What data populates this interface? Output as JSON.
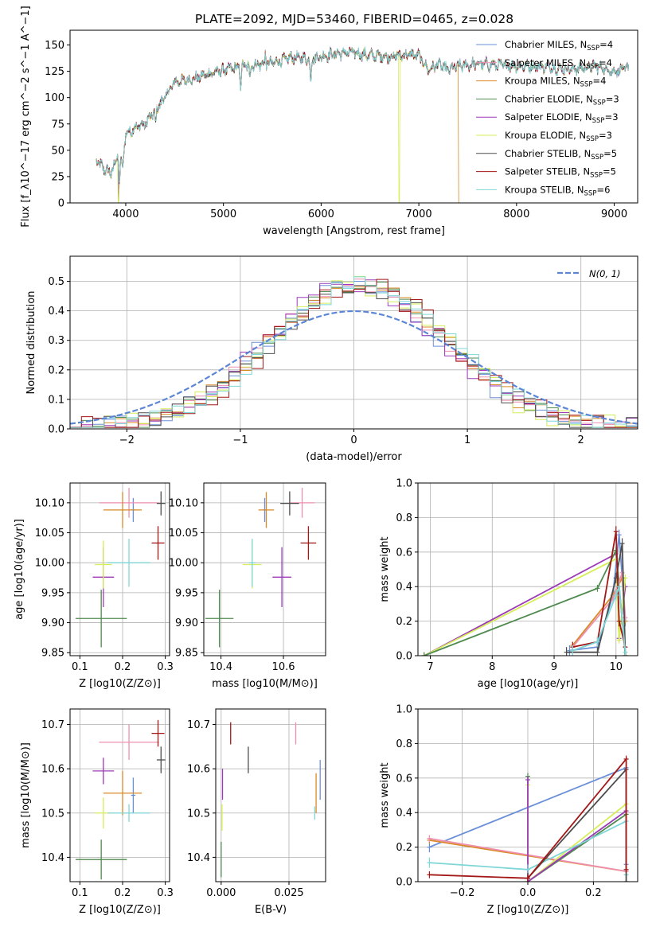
{
  "palette": {
    "chab_miles": "#6a8fd9",
    "salp_miles": "#ef8fb0",
    "krou_miles": "#d98a26",
    "chab_elodie": "#4f8a4f",
    "salp_elodie": "#9c3ab7",
    "krou_elodie": "#d6ee5a",
    "chab_stelib": "#4d4d4d",
    "salp_stelib": "#a31717",
    "krou_stelib": "#7fd6d6",
    "gauss": "#5b86d6"
  },
  "chart_data": [
    {
      "id": "spectrum",
      "type": "line",
      "title": "PLATE=2092, MJD=53460, FIBERID=0465, z=0.028",
      "xlabel": "wavelength [Angstrom, rest frame]",
      "ylabel": "Flux [f_λ10^−17 erg cm^−2 s^−1 A^−1]",
      "xlim": [
        3430,
        9240
      ],
      "ylim": [
        0,
        164
      ],
      "xticks": [
        4000,
        5000,
        6000,
        7000,
        8000,
        9000
      ],
      "yticks": [
        0,
        25,
        50,
        75,
        100,
        125,
        150
      ],
      "grid": false,
      "legend_position": "upper right",
      "legend": [
        {
          "key": "chab_miles",
          "text": "Chabrier MILES, N_SSP=4"
        },
        {
          "key": "salp_miles",
          "text": "Salpeter MILES, N_SSP=4"
        },
        {
          "key": "krou_miles",
          "text": "Kroupa MILES, N_SSP=4"
        },
        {
          "key": "chab_elodie",
          "text": "Chabrier ELODIE, N_SSP=3"
        },
        {
          "key": "salp_elodie",
          "text": "Salpeter ELODIE, N_SSP=3"
        },
        {
          "key": "krou_elodie",
          "text": "Kroupa ELODIE, N_SSP=3"
        },
        {
          "key": "chab_stelib",
          "text": "Chabrier STELIB, N_SSP=5"
        },
        {
          "key": "salp_stelib",
          "text": "Salpeter STELIB, N_SSP=5"
        },
        {
          "key": "krou_stelib",
          "text": "Kroupa STELIB, N_SSP=6"
        }
      ],
      "continuum": {
        "x": [
          3700,
          3780,
          3850,
          3920,
          3950,
          4000,
          4100,
          4200,
          4300,
          4400,
          4500,
          4700,
          4900,
          5100,
          5300,
          5500,
          5700,
          5900,
          6100,
          6300,
          6500,
          6700,
          6900,
          7000,
          7100,
          7200,
          7300,
          7400,
          7600,
          7800,
          8000,
          8200,
          8400,
          8600,
          8800,
          9000,
          9150
        ],
        "y": [
          40,
          32,
          28,
          45,
          38,
          65,
          72,
          75,
          88,
          100,
          115,
          118,
          124,
          128,
          131,
          133,
          138,
          137,
          141,
          143,
          140,
          139,
          141,
          140,
          126,
          132,
          126,
          130,
          132,
          131,
          130,
          130,
          128,
          127,
          130,
          125,
          128
        ]
      },
      "features": {
        "absorption": [
          {
            "x": 3935,
            "depth": 20
          },
          {
            "x": 3970,
            "depth": 18
          },
          {
            "x": 4305,
            "depth": 15
          },
          {
            "x": 5175,
            "depth": 18
          },
          {
            "x": 5270,
            "depth": 10
          },
          {
            "x": 5893,
            "depth": 22
          }
        ],
        "emission": [
          {
            "x": 5430,
            "height": 12
          }
        ],
        "dropouts": [
          {
            "series": "krou_elodie",
            "x": 3925
          },
          {
            "series": "salp_elodie",
            "x": 3928
          },
          {
            "series": "krou_elodie",
            "x": 6800
          },
          {
            "series": "krou_miles",
            "x": 7410
          }
        ]
      }
    },
    {
      "id": "residuals",
      "type": "histogram",
      "xlabel": "(data-model)/error",
      "ylabel": "Normed distribution",
      "xlim": [
        -2.5,
        2.5
      ],
      "ylim": [
        0,
        0.585
      ],
      "xticks": [
        -2,
        -1,
        0,
        1,
        2
      ],
      "yticks": [
        0.0,
        0.1,
        0.2,
        0.3,
        0.4,
        0.5
      ],
      "grid": true,
      "legend_position": "upper right",
      "gaussian_label": "N(0, 1)",
      "bin_width": 0.1,
      "series_offsets": [
        {
          "key": "chab_miles",
          "phase": 0.0,
          "jitter": 0.03
        },
        {
          "key": "salp_miles",
          "phase": 0.02,
          "jitter": 0.02
        },
        {
          "key": "krou_miles",
          "phase": 0.04,
          "jitter": 0.025
        },
        {
          "key": "chab_elodie",
          "phase": 0.06,
          "jitter": 0.03
        },
        {
          "key": "salp_elodie",
          "phase": 0.01,
          "jitter": 0.035
        },
        {
          "key": "krou_elodie",
          "phase": 0.03,
          "jitter": 0.04
        },
        {
          "key": "chab_stelib",
          "phase": 0.05,
          "jitter": 0.035
        },
        {
          "key": "salp_stelib",
          "phase": 0.07,
          "jitter": 0.04
        },
        {
          "key": "krou_stelib",
          "phase": 0.08,
          "jitter": 0.03
        }
      ],
      "peak": 0.49,
      "sigma": 0.78
    },
    {
      "id": "age_vs_Z",
      "type": "errorbar",
      "xlabel": "Z [log10(Z/Z⊙)]",
      "ylabel": "age [log10(age/yr)]",
      "xlim": [
        0.077,
        0.31
      ],
      "ylim": [
        9.845,
        10.133
      ],
      "xticks": [
        0.1,
        0.2,
        0.3
      ],
      "yticks": [
        9.85,
        9.9,
        9.95,
        10.0,
        10.05,
        10.1
      ],
      "grid": true,
      "points": [
        {
          "key": "chab_miles",
          "x": 0.225,
          "xerr": 0.005,
          "y": 10.088,
          "yerr": 0.02
        },
        {
          "key": "salp_miles",
          "x": 0.215,
          "xerr": 0.07,
          "y": 10.1,
          "yerr": 0.025
        },
        {
          "key": "krou_miles",
          "x": 0.2,
          "xerr": 0.045,
          "y": 10.088,
          "yerr": 0.03
        },
        {
          "key": "chab_elodie",
          "x": 0.15,
          "xerr": 0.06,
          "y": 9.907,
          "yerr": 0.048
        },
        {
          "key": "salp_elodie",
          "x": 0.155,
          "xerr": 0.025,
          "y": 9.976,
          "yerr": 0.05
        },
        {
          "key": "krou_elodie",
          "x": 0.155,
          "xerr": 0.02,
          "y": 9.997,
          "yerr": 0.04
        },
        {
          "key": "chab_stelib",
          "x": 0.29,
          "xerr": 0.01,
          "y": 10.099,
          "yerr": 0.02
        },
        {
          "key": "salp_stelib",
          "x": 0.283,
          "xerr": 0.015,
          "y": 10.033,
          "yerr": 0.028
        },
        {
          "key": "krou_stelib",
          "x": 0.215,
          "xerr": 0.05,
          "y": 10.0,
          "yerr": 0.04
        }
      ]
    },
    {
      "id": "age_vs_mass",
      "type": "errorbar",
      "xlabel": "mass [log10(M/M⊙)]",
      "ylabel": "",
      "xlim": [
        10.345,
        10.735
      ],
      "ylim": [
        9.845,
        10.133
      ],
      "xticks": [
        10.4,
        10.6
      ],
      "yticks": [
        9.85,
        9.9,
        9.95,
        10.0,
        10.05,
        10.1
      ],
      "grid": true,
      "points": [
        {
          "key": "chab_miles",
          "x": 10.54,
          "xerr": 0.005,
          "y": 10.088,
          "yerr": 0.02
        },
        {
          "key": "salp_miles",
          "x": 10.66,
          "xerr": 0.04,
          "y": 10.1,
          "yerr": 0.025
        },
        {
          "key": "krou_miles",
          "x": 10.545,
          "xerr": 0.025,
          "y": 10.088,
          "yerr": 0.03
        },
        {
          "key": "chab_elodie",
          "x": 10.395,
          "xerr": 0.045,
          "y": 9.907,
          "yerr": 0.048
        },
        {
          "key": "salp_elodie",
          "x": 10.595,
          "xerr": 0.03,
          "y": 9.976,
          "yerr": 0.05
        },
        {
          "key": "krou_elodie",
          "x": 10.5,
          "xerr": 0.03,
          "y": 9.997,
          "yerr": 0.04
        },
        {
          "key": "chab_stelib",
          "x": 10.62,
          "xerr": 0.03,
          "y": 10.099,
          "yerr": 0.02
        },
        {
          "key": "salp_stelib",
          "x": 10.68,
          "xerr": 0.025,
          "y": 10.033,
          "yerr": 0.028
        },
        {
          "key": "krou_stelib",
          "x": 10.5,
          "xerr": 0.01,
          "y": 10.0,
          "yerr": 0.04
        }
      ]
    },
    {
      "id": "massweight_vs_age",
      "type": "line",
      "xlabel": "age [log10(age/yr)]",
      "ylabel": "mass weight",
      "xlim": [
        6.8,
        10.35
      ],
      "ylim": [
        0.0,
        1.0
      ],
      "xticks": [
        7,
        8,
        9,
        10
      ],
      "yticks": [
        0.0,
        0.2,
        0.4,
        0.6,
        0.8,
        1.0
      ],
      "grid": true,
      "series": [
        {
          "key": "salp_elodie",
          "x": [
            6.9,
            10.0,
            10.05,
            10.15
          ],
          "y": [
            0.0,
            0.59,
            0.1,
            0.4
          ],
          "yerr": 0.02
        },
        {
          "key": "krou_elodie",
          "x": [
            6.9,
            10.0,
            10.05,
            10.15
          ],
          "y": [
            0.0,
            0.56,
            0.09,
            0.45
          ],
          "yerr": 0.02
        },
        {
          "key": "chab_elodie",
          "x": [
            6.9,
            9.7,
            10.0,
            10.15
          ],
          "y": [
            0.0,
            0.39,
            0.61,
            0.0
          ],
          "yerr": 0.02
        },
        {
          "key": "chab_miles",
          "x": [
            9.25,
            9.7,
            9.95,
            10.05,
            10.15
          ],
          "y": [
            0.03,
            0.05,
            0.35,
            0.7,
            0.2
          ],
          "yerr": 0.03
        },
        {
          "key": "krou_miles",
          "x": [
            9.3,
            9.95,
            10.1,
            10.15
          ],
          "y": [
            0.06,
            0.35,
            0.45,
            0.2
          ],
          "yerr": 0.02
        },
        {
          "key": "salp_miles",
          "x": [
            9.3,
            9.95,
            10.1,
            10.15
          ],
          "y": [
            0.05,
            0.33,
            0.48,
            0.22
          ],
          "yerr": 0.02
        },
        {
          "key": "chab_stelib",
          "x": [
            9.2,
            9.7,
            10.0,
            10.1,
            10.15
          ],
          "y": [
            0.02,
            0.02,
            0.45,
            0.65,
            0.0
          ],
          "yerr": 0.03
        },
        {
          "key": "salp_stelib",
          "x": [
            9.3,
            9.7,
            10.0,
            10.05,
            10.15
          ],
          "y": [
            0.05,
            0.08,
            0.72,
            0.2,
            0.05
          ],
          "yerr": 0.03
        },
        {
          "key": "krou_stelib",
          "x": [
            9.3,
            9.7,
            10.0,
            10.05,
            10.15
          ],
          "y": [
            0.03,
            0.08,
            0.35,
            0.4,
            0.02
          ],
          "yerr": 0.03
        }
      ]
    },
    {
      "id": "mass_vs_Z",
      "type": "errorbar",
      "xlabel": "Z [log10(Z/Z⊙)]",
      "ylabel": "mass [log10(M/M⊙)]",
      "xlim": [
        0.077,
        0.31
      ],
      "ylim": [
        10.345,
        10.735
      ],
      "xticks": [
        0.1,
        0.2,
        0.3
      ],
      "yticks": [
        10.4,
        10.5,
        10.6,
        10.7
      ],
      "grid": true,
      "points": [
        {
          "key": "chab_miles",
          "x": 0.225,
          "xerr": 0.005,
          "y": 10.54,
          "yerr": 0.04
        },
        {
          "key": "salp_miles",
          "x": 0.215,
          "xerr": 0.07,
          "y": 10.66,
          "yerr": 0.04
        },
        {
          "key": "krou_miles",
          "x": 0.2,
          "xerr": 0.045,
          "y": 10.545,
          "yerr": 0.05
        },
        {
          "key": "chab_elodie",
          "x": 0.15,
          "xerr": 0.06,
          "y": 10.395,
          "yerr": 0.045
        },
        {
          "key": "salp_elodie",
          "x": 0.155,
          "xerr": 0.025,
          "y": 10.595,
          "yerr": 0.03
        },
        {
          "key": "krou_elodie",
          "x": 0.155,
          "xerr": 0.02,
          "y": 10.5,
          "yerr": 0.035
        },
        {
          "key": "chab_stelib",
          "x": 0.29,
          "xerr": 0.01,
          "y": 10.62,
          "yerr": 0.03
        },
        {
          "key": "salp_stelib",
          "x": 0.283,
          "xerr": 0.015,
          "y": 10.68,
          "yerr": 0.03
        },
        {
          "key": "krou_stelib",
          "x": 0.215,
          "xerr": 0.05,
          "y": 10.5,
          "yerr": 0.02
        }
      ]
    },
    {
      "id": "mass_vs_ebv",
      "type": "errorbar",
      "xlabel": "E(B-V)",
      "ylabel": "",
      "xlim": [
        -0.002,
        0.0385
      ],
      "ylim": [
        10.345,
        10.735
      ],
      "xticks": [
        0.0,
        0.025
      ],
      "yticks": [
        10.4,
        10.5,
        10.6,
        10.7
      ],
      "grid": true,
      "points": [
        {
          "key": "chab_miles",
          "x": 0.0365,
          "xerr": 0,
          "y": 10.575,
          "yerr": 0.045
        },
        {
          "key": "salp_miles",
          "x": 0.0275,
          "xerr": 0,
          "y": 10.68,
          "yerr": 0.025
        },
        {
          "key": "krou_miles",
          "x": 0.035,
          "xerr": 0,
          "y": 10.545,
          "yerr": 0.045
        },
        {
          "key": "chab_elodie",
          "x": 0.0,
          "xerr": 0,
          "y": 10.395,
          "yerr": 0.04
        },
        {
          "key": "salp_elodie",
          "x": 0.0005,
          "xerr": 0,
          "y": 10.565,
          "yerr": 0.035
        },
        {
          "key": "krou_elodie",
          "x": 0.0003,
          "xerr": 0,
          "y": 10.49,
          "yerr": 0.03
        },
        {
          "key": "chab_stelib",
          "x": 0.01,
          "xerr": 0,
          "y": 10.62,
          "yerr": 0.03
        },
        {
          "key": "salp_stelib",
          "x": 0.0035,
          "xerr": 0,
          "y": 10.68,
          "yerr": 0.025
        },
        {
          "key": "krou_stelib",
          "x": 0.0345,
          "xerr": 0,
          "y": 10.5,
          "yerr": 0.015
        }
      ]
    },
    {
      "id": "massweight_vs_Z",
      "type": "line",
      "xlabel": "Z [log10(Z/Z⊙)]",
      "ylabel": "mass weight",
      "xlim": [
        -0.335,
        0.335
      ],
      "ylim": [
        0.0,
        1.0
      ],
      "xticks": [
        -0.2,
        0.0,
        0.2
      ],
      "yticks": [
        0.0,
        0.2,
        0.4,
        0.6,
        0.8,
        1.0
      ],
      "grid": true,
      "series": [
        {
          "key": "chab_miles",
          "x": [
            -0.3,
            0.3,
            0.3
          ],
          "y": [
            0.2,
            0.66,
            0.1
          ],
          "yerr": 0.03
        },
        {
          "key": "krou_miles",
          "x": [
            -0.3,
            0.3
          ],
          "y": [
            0.24,
            0.06
          ],
          "yerr": 0.02
        },
        {
          "key": "salp_miles",
          "x": [
            -0.3,
            0.3
          ],
          "y": [
            0.25,
            0.06
          ],
          "yerr": 0.02
        },
        {
          "key": "chab_elodie",
          "x": [
            0.0,
            0.0,
            0.3
          ],
          "y": [
            0.61,
            0.0,
            0.39
          ],
          "yerr": 0.02
        },
        {
          "key": "krou_elodie",
          "x": [
            0.0,
            0.0,
            0.3
          ],
          "y": [
            0.56,
            0.0,
            0.45
          ],
          "yerr": 0.02
        },
        {
          "key": "salp_elodie",
          "x": [
            0.0,
            0.0,
            0.3
          ],
          "y": [
            0.59,
            0.0,
            0.41
          ],
          "yerr": 0.02
        },
        {
          "key": "krou_stelib",
          "x": [
            -0.3,
            0.0,
            0.3,
            0.3
          ],
          "y": [
            0.11,
            0.07,
            0.35,
            0.04
          ],
          "yerr": 0.03
        },
        {
          "key": "chab_stelib",
          "x": [
            0.0,
            0.3,
            0.3
          ],
          "y": [
            0.02,
            0.65,
            0.0
          ],
          "yerr": 0.03
        },
        {
          "key": "salp_stelib",
          "x": [
            -0.3,
            0.0,
            0.3,
            0.3
          ],
          "y": [
            0.04,
            0.02,
            0.71,
            0.07
          ],
          "yerr": 0.02
        }
      ]
    }
  ]
}
